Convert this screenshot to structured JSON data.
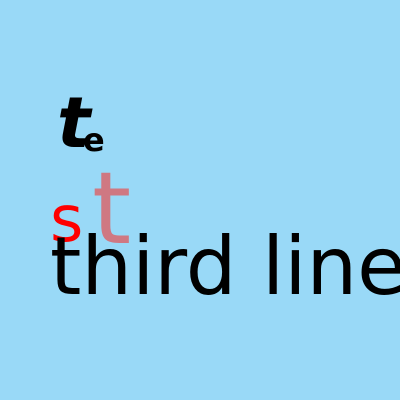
{
  "colors": {
    "background": "#99d9f7",
    "primary_text": "#000000",
    "accent_red": "#ff0000",
    "accent_pink": "#cf7882"
  },
  "line1": {
    "main_char": "t",
    "sub_char": "e"
  },
  "line2": {
    "first_char": "s",
    "second_char": "t"
  },
  "line3": {
    "text": "third line"
  }
}
